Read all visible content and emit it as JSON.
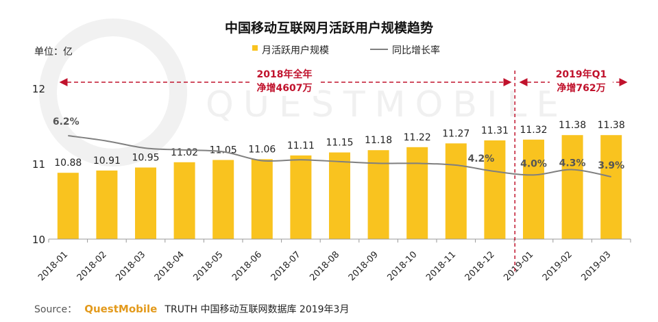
{
  "header": {
    "title": "中国移动互联网月活跃用户规模趋势",
    "unit": "单位：亿"
  },
  "legend": {
    "bar": "月活跃用户规模",
    "line": "同比增长率"
  },
  "annotations": {
    "left_line1": "2018年全年",
    "left_line2": "净增4607万",
    "right_line1": "2019年Q1",
    "right_line2": "净增762万"
  },
  "footer": {
    "source_prefix": "Source：",
    "brand": "QuestMobile",
    "source_rest": "TRUTH 中国移动互联网数据库 2019年3月"
  },
  "watermark": "QUESTMOBILE",
  "colors": {
    "bar": "#f9c31f",
    "line": "#7f7f7f",
    "annotation": "#c0122c"
  },
  "chart_data": {
    "type": "bar",
    "title": "中国移动互联网月活跃用户规模趋势",
    "ylim": [
      10,
      12
    ],
    "yticks": [
      10,
      11,
      12
    ],
    "categories": [
      "2018-01",
      "2018-02",
      "2018-03",
      "2018-04",
      "2018-05",
      "2018-06",
      "2018-07",
      "2018-08",
      "2018-09",
      "2018-10",
      "2018-11",
      "2018-12",
      "2019-01",
      "2019-02",
      "2019-03"
    ],
    "series": [
      {
        "name": "月活跃用户规模",
        "type": "bar",
        "values": [
          10.88,
          10.91,
          10.95,
          11.02,
          11.05,
          11.06,
          11.11,
          11.15,
          11.18,
          11.22,
          11.27,
          11.31,
          11.32,
          11.38,
          11.38
        ],
        "labels": [
          "10.88",
          "10.91",
          "10.95",
          "11.02",
          "11.05",
          "11.06",
          "11.11",
          "11.15",
          "11.18",
          "11.22",
          "11.27",
          "11.31",
          "11.32",
          "11.38",
          "11.38"
        ]
      },
      {
        "name": "同比增长率",
        "type": "line",
        "values": [
          6.2,
          5.9,
          5.5,
          5.4,
          5.3,
          4.8,
          4.85,
          4.75,
          4.65,
          4.65,
          4.55,
          4.2,
          4.0,
          4.3,
          3.9
        ],
        "value_unit": "%",
        "labeled_points": [
          {
            "index": 0,
            "text": "6.2%"
          },
          {
            "index": 11,
            "text": "4.2%"
          },
          {
            "index": 12,
            "text": "4.0%"
          },
          {
            "index": 13,
            "text": "4.3%"
          },
          {
            "index": 14,
            "text": "3.9%"
          }
        ]
      }
    ],
    "divider_after_category": "2018-12",
    "legend_position": "top-center",
    "grid": false
  }
}
